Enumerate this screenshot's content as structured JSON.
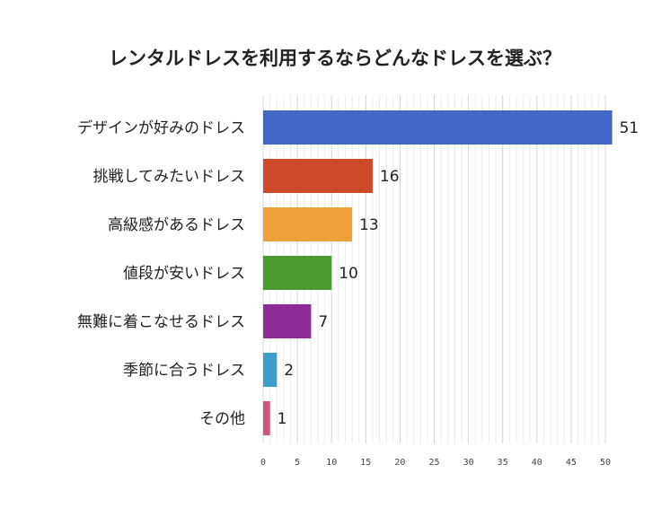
{
  "chart_data": {
    "type": "bar",
    "orientation": "horizontal",
    "title": "レンタルドレスを利用するならどんなドレスを選ぶ？",
    "categories": [
      "デザインが好みのドレス",
      "挑戦してみたいドレス",
      "高級感があるドレス",
      "値段が安いドレス",
      "無難に着こなせるドレス",
      "季節に合うドレス",
      "その他"
    ],
    "values": [
      51,
      16,
      13,
      10,
      7,
      2,
      1
    ],
    "colors": [
      "#4367c7",
      "#cc4a2b",
      "#f0a03a",
      "#4a9a2f",
      "#8e2c98",
      "#3d9cc9",
      "#d2527d"
    ],
    "xlim": [
      0,
      50
    ],
    "xticks": [
      0,
      5,
      10,
      15,
      20,
      25,
      30,
      35,
      40,
      45,
      50
    ],
    "grid": true,
    "data_labels": true
  }
}
